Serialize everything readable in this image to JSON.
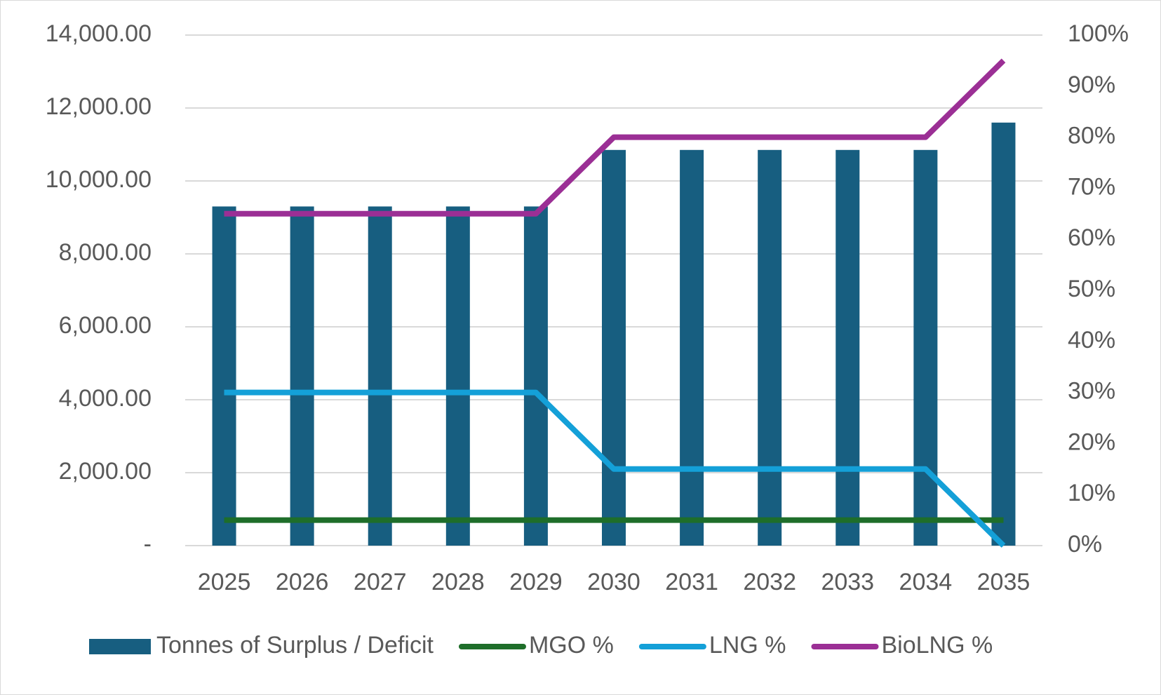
{
  "chart_data": {
    "type": "bar",
    "categories": [
      "2025",
      "2026",
      "2027",
      "2028",
      "2029",
      "2030",
      "2031",
      "2032",
      "2033",
      "2034",
      "2035"
    ],
    "series": [
      {
        "name": "Tonnes of Surplus / Deficit",
        "type": "bar",
        "axis": "left",
        "color": "#175e80",
        "values": [
          9300,
          9300,
          9300,
          9300,
          9300,
          10850,
          10850,
          10850,
          10850,
          10850,
          11600
        ]
      },
      {
        "name": "MGO %",
        "type": "line",
        "axis": "right",
        "color": "#1e6e2a",
        "values": [
          0.05,
          0.05,
          0.05,
          0.05,
          0.05,
          0.05,
          0.05,
          0.05,
          0.05,
          0.05,
          0.05
        ]
      },
      {
        "name": "LNG %",
        "type": "line",
        "axis": "right",
        "color": "#14a0d8",
        "values": [
          0.3,
          0.3,
          0.3,
          0.3,
          0.3,
          0.15,
          0.15,
          0.15,
          0.15,
          0.15,
          0.0
        ]
      },
      {
        "name": "BioLNG %",
        "type": "line",
        "axis": "right",
        "color": "#9b2f95",
        "values": [
          0.65,
          0.65,
          0.65,
          0.65,
          0.65,
          0.8,
          0.8,
          0.8,
          0.8,
          0.8,
          0.95
        ]
      }
    ],
    "y_left": {
      "range": [
        0,
        14000
      ],
      "ticks": [
        0,
        2000,
        4000,
        6000,
        8000,
        10000,
        12000,
        14000
      ],
      "tick_labels": [
        "-",
        "2,000.00",
        "4,000.00",
        "6,000.00",
        "8,000.00",
        "10,000.00",
        "12,000.00",
        "14,000.00"
      ]
    },
    "y_right": {
      "range": [
        0,
        1
      ],
      "ticks": [
        0,
        0.1,
        0.2,
        0.3,
        0.4,
        0.5,
        0.6,
        0.7,
        0.8,
        0.9,
        1.0
      ],
      "tick_labels": [
        "0%",
        "10%",
        "20%",
        "30%",
        "40%",
        "50%",
        "60%",
        "70%",
        "80%",
        "90%",
        "100%"
      ]
    },
    "grid": true,
    "gridline_color": "#d9d9d9",
    "legend_position": "bottom"
  }
}
